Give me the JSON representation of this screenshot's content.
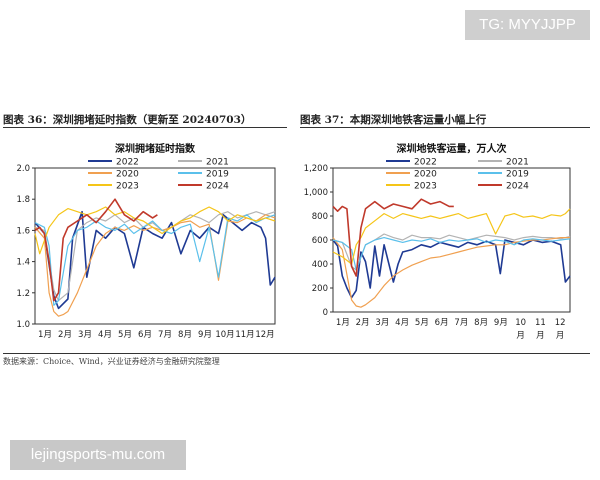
{
  "watermark_top": "TG: MYYJJPP",
  "watermark_bottom": "lejingsports-mu.com",
  "fig_left_title": "图表 36：深圳拥堵延时指数（更新至 20240703）",
  "fig_right_title": "图表 37：本期深圳地铁客运量小幅上行",
  "source": "数据来源：Choice、Wind，兴业证券经济与金融研究院整理",
  "colors": {
    "2022": "#1f3a93",
    "2021": "#b3b3b3",
    "2020": "#f0a050",
    "2019": "#5bc0eb",
    "2023": "#f5c518",
    "2024": "#c0392b"
  },
  "chart_data": [
    {
      "type": "line",
      "title": "深圳拥堵延时指数",
      "ylim": [
        1.0,
        2.0
      ],
      "yticks": [
        "1.0",
        "1.2",
        "1.4",
        "1.6",
        "1.8",
        "2.0"
      ],
      "xticks": [
        "1月",
        "2月",
        "3月",
        "4月",
        "5月",
        "6月",
        "7月",
        "8月",
        "9月",
        "10月",
        "11月",
        "12月"
      ],
      "x_unit": "week (1-52)",
      "legend": [
        "2022",
        "2021",
        "2020",
        "2019",
        "2023",
        "2024"
      ],
      "series": [
        {
          "name": "2022",
          "x": [
            1,
            3,
            5,
            6,
            8,
            9,
            11,
            12,
            14,
            16,
            18,
            20,
            22,
            24,
            26,
            28,
            30,
            32,
            34,
            36,
            38,
            40,
            41,
            43,
            45,
            47,
            49,
            50,
            51,
            52
          ],
          "values": [
            1.65,
            1.58,
            1.18,
            1.1,
            1.16,
            1.55,
            1.72,
            1.3,
            1.6,
            1.55,
            1.62,
            1.58,
            1.36,
            1.62,
            1.58,
            1.55,
            1.65,
            1.45,
            1.6,
            1.55,
            1.62,
            1.58,
            1.7,
            1.65,
            1.6,
            1.65,
            1.62,
            1.55,
            1.25,
            1.3
          ]
        },
        {
          "name": "2021",
          "x": [
            1,
            3,
            5,
            6,
            8,
            10,
            12,
            14,
            16,
            18,
            20,
            22,
            24,
            26,
            28,
            30,
            32,
            34,
            36,
            38,
            40,
            42,
            44,
            46,
            48,
            50,
            52
          ],
          "values": [
            1.62,
            1.6,
            1.22,
            1.15,
            1.2,
            1.6,
            1.65,
            1.68,
            1.66,
            1.7,
            1.65,
            1.68,
            1.62,
            1.65,
            1.6,
            1.62,
            1.66,
            1.7,
            1.68,
            1.65,
            1.7,
            1.72,
            1.68,
            1.7,
            1.72,
            1.7,
            1.72
          ]
        },
        {
          "name": "2020",
          "x": [
            1,
            3,
            4,
            5,
            6,
            7,
            8,
            10,
            12,
            14,
            16,
            18,
            20,
            22,
            24,
            26,
            28,
            30,
            32,
            34,
            36,
            38,
            40,
            42,
            44,
            46,
            48,
            50,
            52
          ],
          "values": [
            1.62,
            1.55,
            1.2,
            1.08,
            1.05,
            1.06,
            1.08,
            1.2,
            1.35,
            1.5,
            1.58,
            1.62,
            1.6,
            1.63,
            1.6,
            1.62,
            1.6,
            1.62,
            1.65,
            1.66,
            1.62,
            1.64,
            1.28,
            1.66,
            1.65,
            1.68,
            1.66,
            1.7,
            1.68
          ]
        },
        {
          "name": "2019",
          "x": [
            1,
            3,
            4,
            5,
            6,
            8,
            10,
            12,
            14,
            16,
            18,
            20,
            22,
            24,
            26,
            28,
            30,
            32,
            34,
            36,
            38,
            40,
            42,
            44,
            46,
            48,
            50,
            52
          ],
          "values": [
            1.65,
            1.62,
            1.5,
            1.12,
            1.15,
            1.5,
            1.6,
            1.62,
            1.66,
            1.62,
            1.6,
            1.64,
            1.58,
            1.62,
            1.66,
            1.6,
            1.58,
            1.62,
            1.64,
            1.4,
            1.62,
            1.3,
            1.68,
            1.66,
            1.7,
            1.65,
            1.68,
            1.7
          ]
        },
        {
          "name": "2023",
          "x": [
            1,
            2,
            4,
            6,
            8,
            10,
            12,
            14,
            16,
            18,
            20,
            22,
            24,
            26,
            28,
            30,
            32,
            34,
            36,
            38,
            40,
            42,
            44,
            46,
            48,
            50,
            52
          ],
          "values": [
            1.58,
            1.45,
            1.62,
            1.7,
            1.74,
            1.72,
            1.7,
            1.72,
            1.75,
            1.7,
            1.72,
            1.68,
            1.66,
            1.62,
            1.58,
            1.62,
            1.66,
            1.68,
            1.72,
            1.75,
            1.72,
            1.66,
            1.7,
            1.68,
            1.66,
            1.68,
            1.66
          ]
        },
        {
          "name": "2024",
          "x": [
            1,
            2,
            3,
            4,
            5,
            6,
            7,
            8,
            10,
            12,
            14,
            16,
            18,
            20,
            22,
            24,
            26,
            27
          ],
          "values": [
            1.6,
            1.62,
            1.58,
            1.4,
            1.15,
            1.2,
            1.55,
            1.62,
            1.66,
            1.7,
            1.65,
            1.72,
            1.8,
            1.7,
            1.66,
            1.72,
            1.68,
            1.7
          ]
        }
      ]
    },
    {
      "type": "line",
      "title": "深圳地铁客运量，万人次",
      "ylim": [
        0,
        1200
      ],
      "yticks": [
        "0",
        "200",
        "400",
        "600",
        "800",
        "1,000",
        "1,200"
      ],
      "xticks": [
        "1月",
        "2月",
        "3月",
        "4月",
        "5月",
        "6月",
        "7月",
        "8月",
        "9月",
        "10 月",
        "11 月",
        "12 月"
      ],
      "x_unit": "week (1-52)",
      "legend": [
        "2022",
        "2021",
        "2020",
        "2019",
        "2023",
        "2024"
      ],
      "series": [
        {
          "name": "2022",
          "x": [
            1,
            2,
            3,
            4,
            5,
            6,
            7,
            8,
            9,
            10,
            11,
            12,
            14,
            15,
            16,
            18,
            20,
            22,
            24,
            26,
            28,
            30,
            32,
            34,
            36,
            37,
            38,
            40,
            42,
            44,
            46,
            48,
            50,
            51,
            52
          ],
          "values": [
            600,
            550,
            300,
            200,
            120,
            180,
            500,
            420,
            200,
            550,
            300,
            560,
            250,
            400,
            500,
            520,
            560,
            540,
            580,
            560,
            540,
            580,
            560,
            590,
            560,
            320,
            600,
            580,
            560,
            600,
            580,
            590,
            560,
            250,
            300
          ]
        },
        {
          "name": "2021",
          "x": [
            1,
            3,
            5,
            6,
            8,
            10,
            12,
            14,
            16,
            18,
            20,
            22,
            24,
            26,
            28,
            30,
            32,
            34,
            36,
            38,
            40,
            42,
            44,
            46,
            48,
            50,
            52
          ],
          "values": [
            600,
            580,
            380,
            350,
            560,
            600,
            650,
            620,
            600,
            640,
            620,
            620,
            610,
            640,
            620,
            600,
            620,
            640,
            630,
            620,
            600,
            620,
            630,
            620,
            620,
            610,
            630
          ]
        },
        {
          "name": "2020",
          "x": [
            1,
            3,
            5,
            6,
            7,
            8,
            10,
            12,
            14,
            16,
            18,
            20,
            22,
            24,
            26,
            28,
            30,
            32,
            34,
            36,
            38,
            40,
            42,
            44,
            46,
            48,
            50,
            52
          ],
          "values": [
            620,
            520,
            100,
            50,
            40,
            60,
            120,
            220,
            300,
            350,
            390,
            420,
            450,
            460,
            480,
            500,
            520,
            540,
            550,
            560,
            560,
            580,
            590,
            600,
            600,
            610,
            620,
            620
          ]
        },
        {
          "name": "2019",
          "x": [
            1,
            3,
            5,
            6,
            8,
            10,
            12,
            14,
            16,
            18,
            20,
            22,
            24,
            26,
            28,
            30,
            32,
            34,
            36,
            38,
            40,
            42,
            44,
            46,
            48,
            50,
            52
          ],
          "values": [
            600,
            580,
            520,
            350,
            560,
            600,
            620,
            600,
            580,
            600,
            590,
            610,
            580,
            600,
            590,
            600,
            610,
            580,
            600,
            590,
            560,
            600,
            610,
            600,
            590,
            600,
            610
          ]
        },
        {
          "name": "2023",
          "x": [
            1,
            3,
            5,
            6,
            7,
            8,
            10,
            12,
            14,
            16,
            18,
            20,
            22,
            24,
            26,
            28,
            30,
            32,
            34,
            36,
            38,
            40,
            42,
            44,
            46,
            48,
            50,
            51,
            52
          ],
          "values": [
            500,
            460,
            400,
            560,
            620,
            700,
            760,
            820,
            780,
            820,
            800,
            780,
            800,
            780,
            800,
            820,
            780,
            800,
            820,
            650,
            800,
            820,
            790,
            800,
            780,
            810,
            800,
            820,
            860
          ]
        },
        {
          "name": "2024",
          "x": [
            1,
            2,
            3,
            4,
            5,
            6,
            7,
            8,
            10,
            12,
            14,
            16,
            18,
            20,
            22,
            24,
            26,
            27
          ],
          "values": [
            880,
            840,
            880,
            860,
            380,
            300,
            700,
            860,
            920,
            860,
            900,
            880,
            860,
            940,
            900,
            920,
            880,
            880
          ]
        }
      ]
    }
  ]
}
